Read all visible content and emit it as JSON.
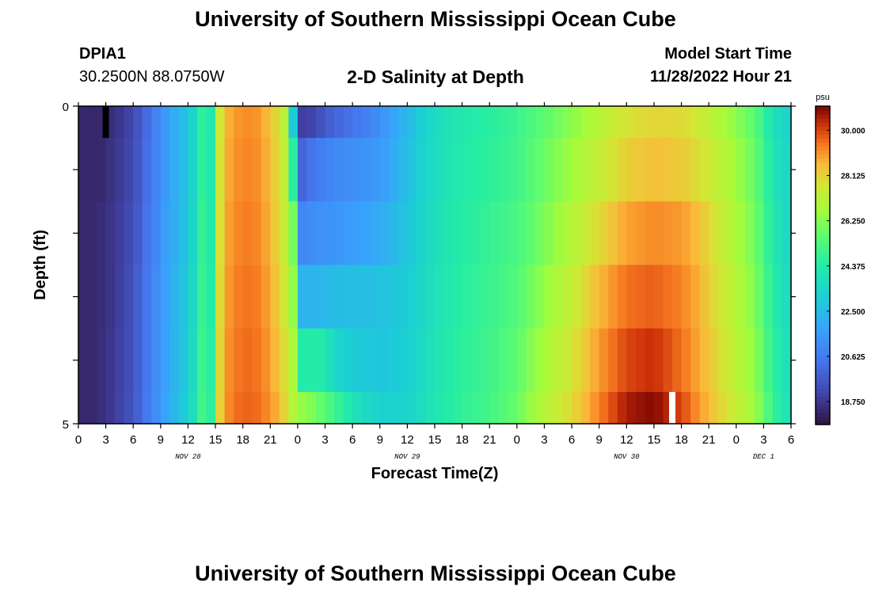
{
  "header": {
    "title": "University of Southern Mississippi Ocean Cube",
    "station_id": "DPIA1",
    "coordinates": "30.2500N  88.0750W",
    "subtitle": "2-D Salinity at Depth",
    "model_start_label": "Model Start Time",
    "model_start_value": "11/28/2022 Hour 21",
    "footer_title": "University of Southern Mississippi Ocean Cube"
  },
  "chart_data": {
    "type": "heatmap",
    "title": "2-D Salinity at Depth",
    "xlabel": "Forecast Time(Z)",
    "ylabel": "Depth (ft)",
    "ylim": [
      0,
      5
    ],
    "y_ticks": [
      "0",
      "5"
    ],
    "x_range_hours": [
      0,
      78
    ],
    "x_tick_labels": [
      "0",
      "3",
      "6",
      "9",
      "12",
      "15",
      "18",
      "21",
      "0",
      "3",
      "6",
      "9",
      "12",
      "15",
      "18",
      "21",
      "0",
      "3",
      "6",
      "9",
      "12",
      "15",
      "18",
      "21",
      "0",
      "3",
      "6"
    ],
    "day_labels": [
      {
        "label": "NOV 28",
        "hour": 12
      },
      {
        "label": "NOV 29",
        "hour": 36
      },
      {
        "label": "NOV 30",
        "hour": 60
      },
      {
        "label": "DEC 1",
        "hour": 75
      }
    ],
    "colorbar": {
      "unit": "psu",
      "min": 17.8,
      "max": 31.0,
      "tick_values": [
        18.75,
        20.625,
        22.5,
        24.375,
        26.25,
        28.125,
        30.0
      ],
      "tick_labels": [
        "18.750",
        "20.625",
        "22.500",
        "24.375",
        "26.250",
        "28.125",
        "30.000"
      ]
    },
    "depth_layers": 5,
    "hours": [
      0,
      2,
      4,
      6,
      8,
      10,
      12,
      13,
      14,
      14.5,
      15,
      16,
      18,
      20,
      22,
      23,
      23.5,
      24,
      24.5,
      25,
      26,
      27,
      28,
      30,
      33,
      36,
      38,
      40,
      42,
      45,
      48,
      50,
      54,
      57,
      60,
      63,
      66,
      68,
      70,
      72,
      74,
      75,
      76,
      78
    ],
    "salinity_by_layer": [
      [
        18.4,
        18.3,
        18.6,
        19.2,
        20.5,
        21.8,
        22.8,
        23.8,
        25.5,
        24.2,
        26.8,
        28.6,
        29.2,
        29.0,
        27.8,
        26.5,
        23.0,
        21.2,
        19.0,
        18.9,
        19.3,
        19.7,
        20.0,
        20.4,
        21.2,
        22.4,
        23.3,
        23.8,
        24.2,
        24.5,
        24.9,
        25.4,
        26.3,
        27.1,
        27.8,
        28.1,
        28.0,
        27.6,
        27.0,
        26.3,
        25.6,
        24.8,
        23.8,
        23.2
      ],
      [
        18.4,
        18.3,
        18.7,
        19.3,
        20.6,
        21.8,
        22.8,
        23.8,
        25.5,
        24.2,
        26.9,
        28.7,
        29.3,
        29.1,
        27.9,
        26.8,
        24.5,
        21.5,
        20.0,
        20.2,
        20.6,
        20.8,
        21.0,
        21.2,
        21.5,
        22.6,
        23.4,
        23.9,
        24.3,
        24.6,
        25.0,
        25.6,
        26.6,
        27.4,
        28.2,
        28.5,
        28.3,
        27.9,
        27.3,
        26.6,
        25.8,
        25.0,
        24.0,
        23.3
      ],
      [
        18.4,
        18.4,
        18.8,
        19.4,
        20.7,
        21.9,
        22.9,
        23.9,
        25.6,
        24.3,
        27.0,
        28.8,
        29.4,
        29.2,
        28.0,
        27.0,
        26.0,
        21.6,
        21.0,
        21.1,
        21.2,
        21.3,
        21.4,
        21.6,
        22.0,
        22.8,
        23.5,
        24.0,
        24.4,
        24.8,
        25.2,
        25.8,
        27.0,
        28.0,
        28.9,
        29.2,
        29.0,
        28.5,
        27.6,
        26.8,
        26.0,
        25.2,
        24.2,
        23.4
      ],
      [
        18.4,
        18.4,
        18.8,
        19.5,
        20.8,
        22.0,
        23.0,
        24.0,
        25.7,
        24.4,
        27.1,
        28.9,
        29.5,
        29.3,
        28.2,
        27.2,
        26.4,
        23.0,
        22.3,
        22.2,
        22.3,
        22.4,
        22.5,
        22.6,
        22.7,
        23.0,
        23.6,
        24.1,
        24.5,
        24.9,
        25.4,
        26.1,
        27.4,
        28.6,
        29.5,
        29.7,
        29.3,
        28.7,
        27.8,
        27.0,
        26.2,
        25.4,
        24.4,
        23.5
      ],
      [
        18.4,
        18.4,
        18.9,
        19.5,
        20.8,
        22.0,
        23.1,
        24.1,
        25.8,
        24.5,
        27.2,
        29.0,
        29.6,
        29.4,
        28.4,
        27.5,
        26.8,
        24.5,
        24.3,
        24.4,
        24.4,
        24.2,
        23.5,
        23.0,
        22.8,
        23.1,
        23.7,
        24.2,
        24.6,
        25.0,
        25.6,
        26.4,
        27.7,
        29.0,
        30.0,
        30.3,
        29.5,
        28.8,
        28.0,
        27.2,
        26.4,
        25.6,
        24.6,
        23.6
      ],
      [
        18.4,
        18.4,
        18.9,
        19.6,
        20.9,
        22.1,
        23.2,
        24.2,
        25.9,
        24.6,
        27.3,
        29.1,
        29.7,
        29.5,
        28.6,
        27.7,
        27.0,
        26.5,
        26.4,
        26.3,
        26.0,
        25.5,
        25.0,
        24.0,
        23.2,
        23.3,
        23.8,
        24.3,
        24.7,
        25.1,
        25.8,
        26.7,
        28.0,
        29.3,
        30.6,
        30.9,
        30.0,
        29.0,
        28.2,
        27.4,
        26.6,
        25.8,
        24.8,
        23.7
      ]
    ],
    "markers": [
      {
        "hour": 3,
        "depth_from": 0,
        "depth_to": 0.5,
        "color": "#000000"
      },
      {
        "hour": 65,
        "depth_from": 4.5,
        "depth_to": 5,
        "color": "#ffffff"
      }
    ]
  }
}
